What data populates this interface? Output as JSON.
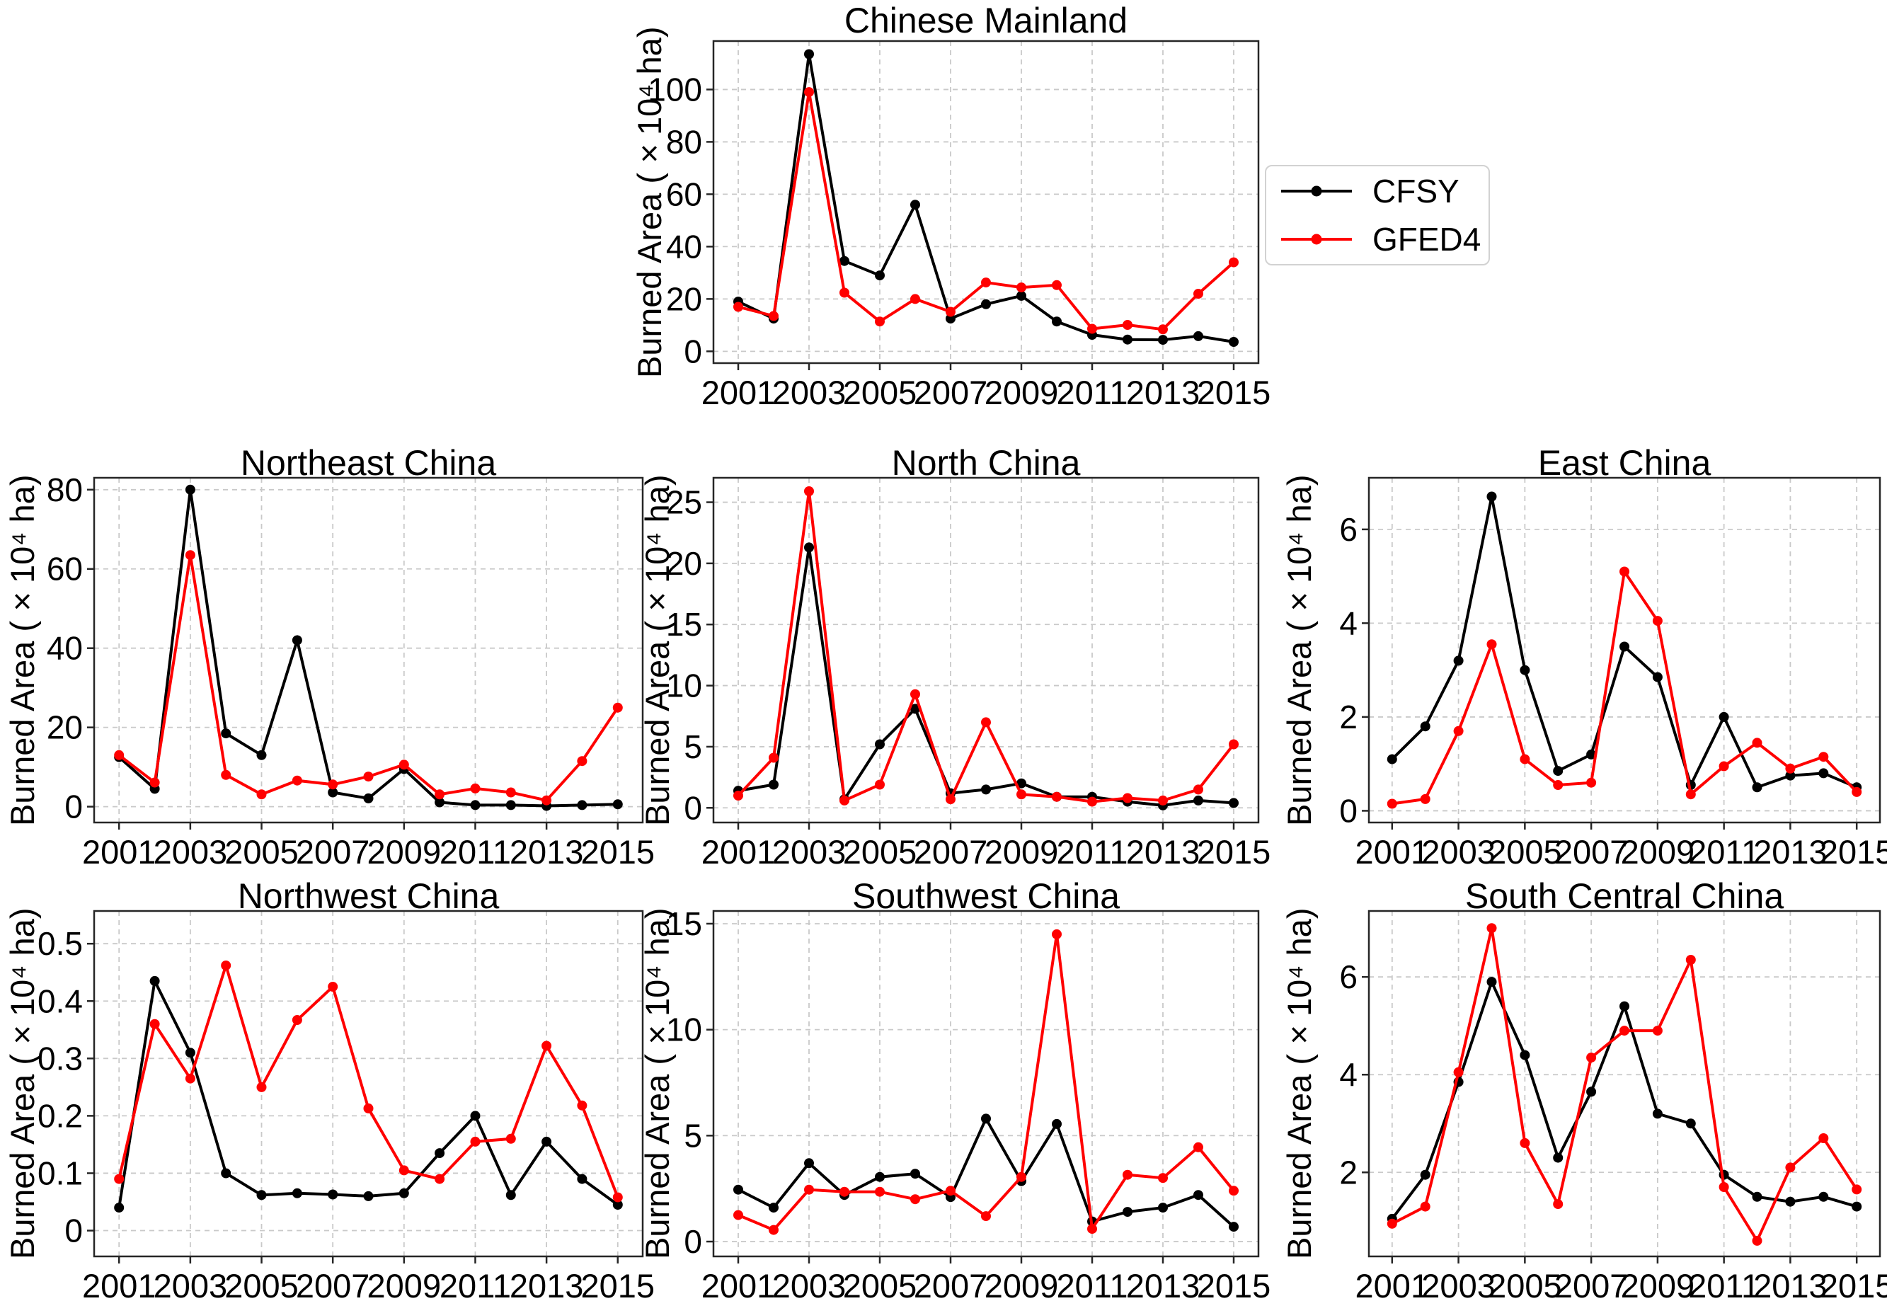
{
  "figure": {
    "x_years": [
      2001,
      2002,
      2003,
      2004,
      2005,
      2006,
      2007,
      2008,
      2009,
      2010,
      2011,
      2012,
      2013,
      2014,
      2015
    ],
    "xticks": [
      2001,
      2003,
      2005,
      2007,
      2009,
      2011,
      2013,
      2015
    ],
    "xlim": [
      2000.3,
      2015.7
    ],
    "ylabel": "Burned Area (×10⁴ ha)"
  },
  "legend": {
    "items": [
      {
        "label": "CFSY",
        "color": "#000000"
      },
      {
        "label": "GFED4",
        "color": "#ff0000"
      }
    ]
  },
  "chart_data": [
    {
      "type": "line",
      "title": "Chinese Mainland",
      "ylabel": "Burned Area (×10⁴ ha)",
      "x": [
        2001,
        2002,
        2003,
        2004,
        2005,
        2006,
        2007,
        2008,
        2009,
        2010,
        2011,
        2012,
        2013,
        2014,
        2015
      ],
      "yticks": [
        0,
        20,
        40,
        60,
        80,
        100
      ],
      "ylim": [
        -4.5,
        118.5
      ],
      "grid": true,
      "series": [
        {
          "name": "CFSY",
          "color": "#000000",
          "values": [
            19,
            12.5,
            113.5,
            34.5,
            29,
            56,
            12.5,
            18,
            21.2,
            11.4,
            6.3,
            4.5,
            4.4,
            5.8,
            3.6
          ]
        },
        {
          "name": "GFED4",
          "color": "#ff0000",
          "values": [
            17,
            13.5,
            99,
            22.4,
            11.4,
            20,
            15.1,
            26.3,
            24.4,
            25.3,
            8.6,
            10.1,
            8.4,
            22,
            34
          ]
        }
      ]
    },
    {
      "type": "line",
      "title": "Northeast China",
      "ylabel": "Burned Area (×10⁴ ha)",
      "x": [
        2001,
        2002,
        2003,
        2004,
        2005,
        2006,
        2007,
        2008,
        2009,
        2010,
        2011,
        2012,
        2013,
        2014,
        2015
      ],
      "yticks": [
        0,
        20,
        40,
        60,
        80
      ],
      "ylim": [
        -4,
        83
      ],
      "grid": true,
      "series": [
        {
          "name": "CFSY",
          "color": "#000000",
          "values": [
            12.5,
            4.5,
            80,
            18.5,
            13,
            42,
            3.6,
            2.1,
            9.5,
            1.1,
            0.4,
            0.4,
            0.2,
            0.4,
            0.6
          ]
        },
        {
          "name": "GFED4",
          "color": "#ff0000",
          "values": [
            13,
            6.1,
            63.5,
            8,
            3.1,
            6.6,
            5.6,
            7.6,
            10.6,
            3.1,
            4.6,
            3.6,
            1.6,
            11.5,
            25
          ]
        }
      ]
    },
    {
      "type": "line",
      "title": "North China",
      "ylabel": "Burned Area (×10⁴ ha)",
      "x": [
        2001,
        2002,
        2003,
        2004,
        2005,
        2006,
        2007,
        2008,
        2009,
        2010,
        2011,
        2012,
        2013,
        2014,
        2015
      ],
      "yticks": [
        0,
        5,
        10,
        15,
        20,
        25
      ],
      "ylim": [
        -1.2,
        27
      ],
      "grid": true,
      "series": [
        {
          "name": "CFSY",
          "color": "#000000",
          "values": [
            1.4,
            1.9,
            21.3,
            0.7,
            5.2,
            8.1,
            1.2,
            1.5,
            2.0,
            0.9,
            0.9,
            0.5,
            0.2,
            0.6,
            0.4
          ]
        },
        {
          "name": "GFED4",
          "color": "#ff0000",
          "values": [
            1.0,
            4.1,
            25.9,
            0.6,
            1.9,
            9.3,
            0.7,
            7.0,
            1.1,
            0.9,
            0.5,
            0.8,
            0.6,
            1.5,
            5.2
          ]
        }
      ]
    },
    {
      "type": "line",
      "title": "East China",
      "ylabel": "Burned Area (×10⁴ ha)",
      "x": [
        2001,
        2002,
        2003,
        2004,
        2005,
        2006,
        2007,
        2008,
        2009,
        2010,
        2011,
        2012,
        2013,
        2014,
        2015
      ],
      "yticks": [
        0,
        2,
        4,
        6
      ],
      "ylim": [
        -0.25,
        7.1
      ],
      "grid": true,
      "series": [
        {
          "name": "CFSY",
          "color": "#000000",
          "values": [
            1.1,
            1.8,
            3.2,
            6.7,
            3.0,
            0.85,
            1.2,
            3.5,
            2.85,
            0.55,
            2.0,
            0.5,
            0.75,
            0.8,
            0.5
          ]
        },
        {
          "name": "GFED4",
          "color": "#ff0000",
          "values": [
            0.15,
            0.25,
            1.7,
            3.55,
            1.1,
            0.55,
            0.6,
            5.1,
            4.05,
            0.35,
            0.95,
            1.45,
            0.9,
            1.15,
            0.4
          ]
        }
      ]
    },
    {
      "type": "line",
      "title": "Northwest China",
      "ylabel": "Burned Area (×10⁴ ha)",
      "x": [
        2001,
        2002,
        2003,
        2004,
        2005,
        2006,
        2007,
        2008,
        2009,
        2010,
        2011,
        2012,
        2013,
        2014,
        2015
      ],
      "yticks": [
        0,
        0.1,
        0.2,
        0.3,
        0.4,
        0.5
      ],
      "ylim": [
        -0.045,
        0.557
      ],
      "grid": true,
      "series": [
        {
          "name": "CFSY",
          "color": "#000000",
          "values": [
            0.04,
            0.435,
            0.31,
            0.1,
            0.062,
            0.065,
            0.063,
            0.06,
            0.065,
            0.135,
            0.2,
            0.062,
            0.155,
            0.09,
            0.045
          ]
        },
        {
          "name": "GFED4",
          "color": "#ff0000",
          "values": [
            0.09,
            0.36,
            0.265,
            0.462,
            0.25,
            0.367,
            0.425,
            0.213,
            0.105,
            0.09,
            0.155,
            0.16,
            0.322,
            0.218,
            0.058
          ]
        }
      ]
    },
    {
      "type": "line",
      "title": "Southwest China",
      "ylabel": "Burned Area (×10⁴ ha)",
      "x": [
        2001,
        2002,
        2003,
        2004,
        2005,
        2006,
        2007,
        2008,
        2009,
        2010,
        2011,
        2012,
        2013,
        2014,
        2015
      ],
      "yticks": [
        0,
        5,
        10,
        15
      ],
      "ylim": [
        -0.7,
        15.6
      ],
      "grid": true,
      "series": [
        {
          "name": "CFSY",
          "color": "#000000",
          "values": [
            2.45,
            1.6,
            3.7,
            2.2,
            3.05,
            3.2,
            2.1,
            5.8,
            2.85,
            5.55,
            0.95,
            1.4,
            1.6,
            2.2,
            0.7
          ]
        },
        {
          "name": "GFED4",
          "color": "#ff0000",
          "values": [
            1.25,
            0.55,
            2.45,
            2.35,
            2.35,
            2.0,
            2.4,
            1.2,
            3.05,
            14.5,
            0.6,
            3.15,
            3.0,
            4.45,
            2.4
          ]
        }
      ]
    },
    {
      "type": "line",
      "title": "South Central China",
      "ylabel": "Burned Area (×10⁴ ha)",
      "x": [
        2001,
        2002,
        2003,
        2004,
        2005,
        2006,
        2007,
        2008,
        2009,
        2010,
        2011,
        2012,
        2013,
        2014,
        2015
      ],
      "yticks": [
        2,
        4,
        6
      ],
      "ylim": [
        0.28,
        7.35
      ],
      "grid": true,
      "series": [
        {
          "name": "CFSY",
          "color": "#000000",
          "values": [
            1.05,
            1.95,
            3.85,
            5.9,
            4.4,
            2.3,
            3.65,
            5.4,
            3.2,
            3.0,
            1.95,
            1.5,
            1.4,
            1.5,
            1.3
          ]
        },
        {
          "name": "GFED4",
          "color": "#ff0000",
          "values": [
            0.95,
            1.3,
            4.05,
            7.0,
            2.6,
            1.35,
            4.35,
            4.9,
            4.9,
            6.35,
            1.7,
            0.6,
            2.1,
            2.7,
            1.65
          ]
        }
      ]
    }
  ]
}
